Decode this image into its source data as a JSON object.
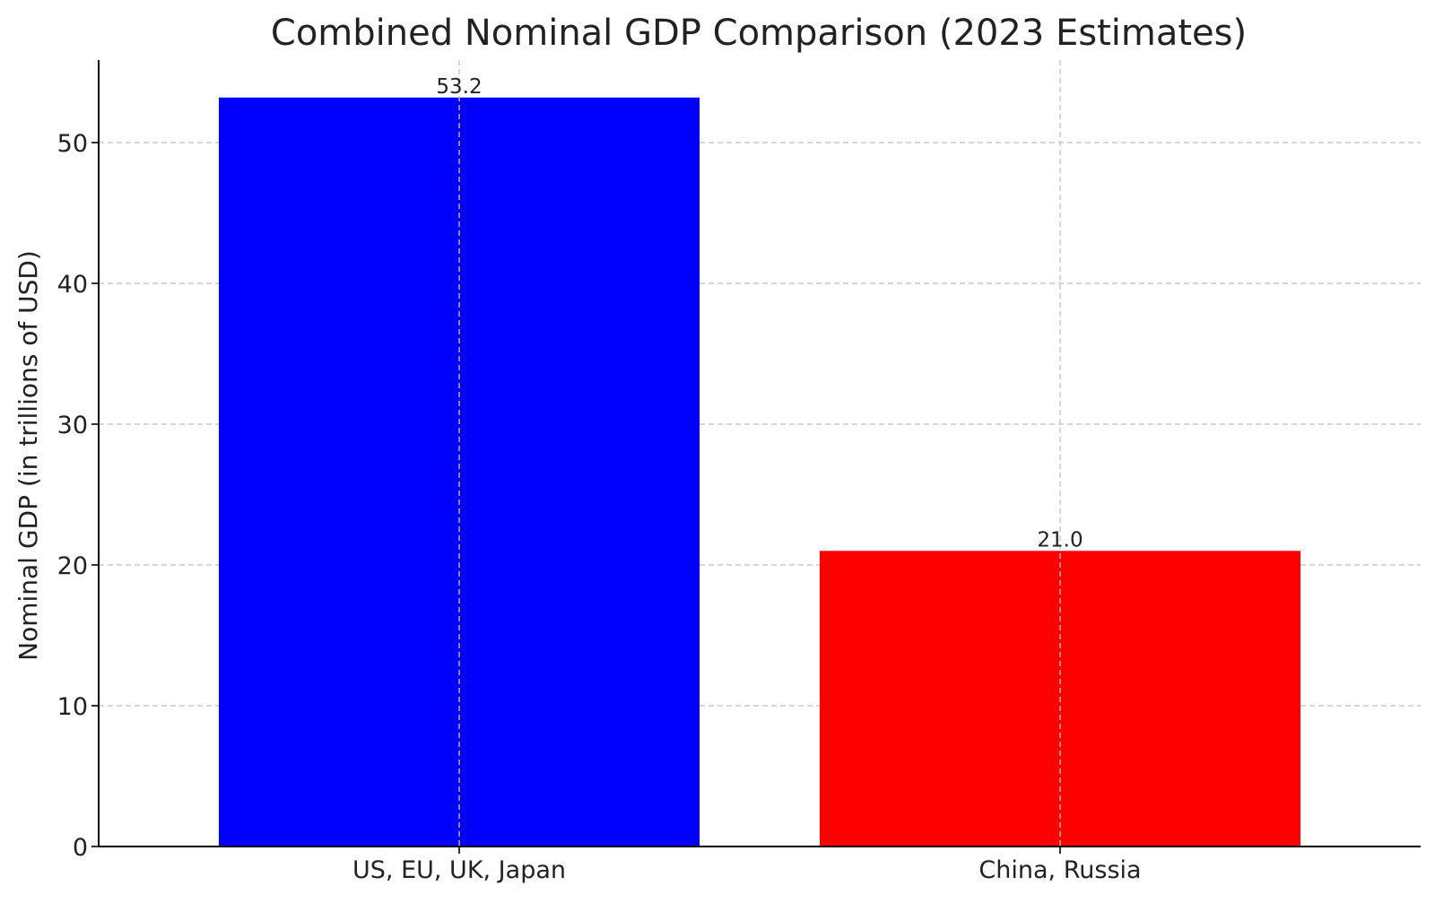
{
  "chart_data": {
    "type": "bar",
    "title": "Combined Nominal GDP Comparison (2023 Estimates)",
    "xlabel": "",
    "ylabel": "Nominal GDP (in trillions of USD)",
    "categories": [
      "US, EU, UK, Japan",
      "China, Russia"
    ],
    "values": [
      53.2,
      21.0
    ],
    "value_labels": [
      "53.2",
      "21.0"
    ],
    "colors": [
      "#0000ff",
      "#ff0000"
    ],
    "ylim": [
      0,
      55.86
    ],
    "yticks": [
      0,
      10,
      20,
      30,
      40,
      50
    ],
    "ytick_labels": [
      "0",
      "10",
      "20",
      "30",
      "40",
      "50"
    ],
    "grid": true,
    "legend": "none"
  }
}
